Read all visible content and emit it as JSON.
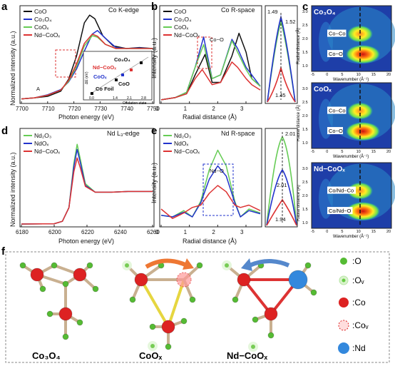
{
  "panel_labels": {
    "a": "a",
    "b": "b",
    "c": "c",
    "d": "d",
    "e": "e",
    "f": "f"
  },
  "legend": {
    "a": [
      "CoO",
      "Co₃O₄",
      "CoOₓ",
      "Nd−CoOₓ"
    ],
    "b": [
      "CoO",
      "Co₃O₄",
      "CoOₓ",
      "Nd−CoOₓ"
    ],
    "d": [
      "Nd₂O₃",
      "NdOₓ",
      "Nd−CoOₓ"
    ],
    "e": [
      "Nd₂O₃",
      "NdOₓ",
      "Nd−CoOₓ"
    ]
  },
  "colors": {
    "black": "#111111",
    "blue": "#2233cc",
    "green": "#66cc55",
    "red": "#dd3333",
    "orange": "#ee7733"
  },
  "panel_a": {
    "title": "Co K-edge",
    "xlabel": "Photon energy (eV)",
    "ylabel": "Normalized intensity (a.u.)",
    "xticks": [
      "7700",
      "7710",
      "7720",
      "7730",
      "7740",
      "7750"
    ],
    "peak_label": "A",
    "inset": {
      "ylabel": "ΔE (eV)",
      "xlabel": "Oxidation state",
      "labels": [
        "Co₃O₄",
        "Nd−CoOₓ",
        "CoOₓ",
        "CoO",
        "Co Foil"
      ],
      "xticks": [
        "0.0",
        "1.4",
        "2.1",
        "2.8"
      ],
      "yticks": [
        "0",
        "5",
        "10"
      ]
    }
  },
  "panel_b": {
    "title": "Co R-space",
    "xlabel": "Radial distance (Å)",
    "ylabel": "Intensity (a.u.)",
    "xticks": [
      "0",
      "1",
      "2",
      "3"
    ],
    "annotation": "Co−O",
    "zoom_values": [
      "1.49",
      "1.52",
      "1.45"
    ]
  },
  "panel_c": {
    "maps": [
      {
        "label": "Co₃O₄",
        "peaks": [
          "Co−Co",
          "Co−O"
        ]
      },
      {
        "label": "CoOₓ",
        "peaks": [
          "Co−Co",
          "Co−O"
        ]
      },
      {
        "label": "Nd−CoOₓ",
        "peaks": [
          "Co/Nd−Co",
          "Co/Nd−O"
        ]
      }
    ],
    "ylabel": "Radial distance (Å)",
    "xlabel": "Wavenumber (Å⁻¹)",
    "xticks": [
      "-5",
      "0",
      "5",
      "10",
      "15",
      "20"
    ],
    "yticks": [
      "1.0",
      "1.5",
      "2.0",
      "2.5",
      "3.0"
    ]
  },
  "panel_d": {
    "title": "Nd L₃-edge",
    "xlabel": "Photon energy (eV)",
    "ylabel": "Normalized intensity (a.u.)",
    "xticks": [
      "6180",
      "6200",
      "6220",
      "6240",
      "6260"
    ]
  },
  "panel_e": {
    "title": "Nd R-space",
    "xlabel": "Radial distance (Å)",
    "ylabel": "Intensity (a.u.)",
    "xticks": [
      "0",
      "1",
      "2",
      "3"
    ],
    "annotation": "Nd−O",
    "zoom_values": [
      "2.01",
      "2.01",
      "1.94"
    ]
  },
  "panel_f": {
    "structures": [
      "Co₃O₄",
      "CoOₓ",
      "Nd−CoOₓ"
    ],
    "legend": [
      ":O",
      ":Oᵥ",
      ":Co",
      ":Coᵥ",
      ":Nd"
    ]
  },
  "chart_data": [
    {
      "type": "line",
      "panel": "a",
      "title": "Co K-edge",
      "xlabel": "Photon energy (eV)",
      "ylabel": "Normalized intensity (a.u.)",
      "xlim": [
        7700,
        7750
      ],
      "series": [
        {
          "name": "CoO",
          "x": [
            7700,
            7705,
            7710,
            7715,
            7718,
            7721,
            7724,
            7726,
            7728,
            7731,
            7735,
            7740,
            7745,
            7750
          ],
          "y": [
            0.02,
            0.04,
            0.07,
            0.17,
            0.4,
            0.85,
            1.5,
            1.65,
            1.58,
            1.25,
            1.05,
            1.0,
            1.02,
            1.0
          ]
        },
        {
          "name": "Co₃O₄",
          "x": [
            7700,
            7705,
            7710,
            7715,
            7718,
            7721,
            7724,
            7727,
            7729,
            7732,
            7736,
            7740,
            7745,
            7750
          ],
          "y": [
            0.02,
            0.04,
            0.1,
            0.2,
            0.35,
            0.6,
            0.95,
            1.28,
            1.35,
            1.2,
            1.02,
            1.0,
            1.01,
            1.0
          ]
        },
        {
          "name": "CoOₓ",
          "x": [
            7700,
            7705,
            7710,
            7715,
            7718,
            7721,
            7724,
            7727,
            7729,
            7732,
            7736,
            7740,
            7745,
            7750
          ],
          "y": [
            0.02,
            0.04,
            0.09,
            0.19,
            0.36,
            0.65,
            1.05,
            1.25,
            1.22,
            1.08,
            1.0,
            1.0,
            1.0,
            1.0
          ]
        },
        {
          "name": "Nd−CoOₓ",
          "x": [
            7700,
            7705,
            7710,
            7715,
            7718,
            7721,
            7724,
            7727,
            7729,
            7732,
            7736,
            7740,
            7745,
            7750
          ],
          "y": [
            0.02,
            0.04,
            0.09,
            0.19,
            0.38,
            0.7,
            1.1,
            1.28,
            1.24,
            1.08,
            1.0,
            1.0,
            1.0,
            1.0
          ]
        }
      ]
    },
    {
      "type": "line",
      "panel": "b",
      "title": "Co R-space",
      "xlabel": "Radial distance (Å)",
      "ylabel": "Intensity (a.u.)",
      "xlim": [
        0,
        3.5
      ],
      "series": [
        {
          "name": "CoO",
          "x": [
            0,
            0.5,
            0.9,
            1.2,
            1.55,
            1.8,
            2.1,
            2.5,
            2.75,
            3.0,
            3.2,
            3.5
          ],
          "y": [
            0.02,
            0.05,
            0.1,
            0.35,
            0.62,
            0.25,
            0.25,
            0.6,
            0.9,
            0.65,
            0.3,
            0.2
          ]
        },
        {
          "name": "Co₃O₄",
          "x": [
            0,
            0.5,
            0.9,
            1.2,
            1.5,
            1.8,
            2.1,
            2.5,
            2.7,
            3.0,
            3.2,
            3.5
          ],
          "y": [
            0.02,
            0.05,
            0.12,
            0.45,
            0.85,
            0.3,
            0.35,
            0.82,
            0.7,
            0.45,
            0.35,
            0.2
          ]
        },
        {
          "name": "CoOₓ",
          "x": [
            0,
            0.5,
            0.9,
            1.2,
            1.5,
            1.8,
            2.1,
            2.5,
            2.7,
            3.0,
            3.2,
            3.5
          ],
          "y": [
            0.02,
            0.05,
            0.12,
            0.45,
            0.75,
            0.3,
            0.35,
            0.8,
            0.65,
            0.42,
            0.3,
            0.2
          ]
        },
        {
          "name": "Nd−CoOₓ",
          "x": [
            0,
            0.5,
            0.9,
            1.2,
            1.45,
            1.8,
            2.1,
            2.5,
            2.7,
            3.0,
            3.2,
            3.5
          ],
          "y": [
            0.02,
            0.05,
            0.1,
            0.3,
            0.42,
            0.22,
            0.25,
            0.52,
            0.45,
            0.3,
            0.22,
            0.15
          ]
        }
      ]
    },
    {
      "type": "line",
      "panel": "d",
      "title": "Nd L₃-edge",
      "xlabel": "Photon energy (eV)",
      "ylabel": "Normalized intensity (a.u.)",
      "xlim": [
        6180,
        6260
      ],
      "series": [
        {
          "name": "Nd₂O₃",
          "x": [
            6180,
            6200,
            6205,
            6209,
            6212,
            6214,
            6216,
            6219,
            6225,
            6235,
            6245,
            6260
          ],
          "y": [
            0.02,
            0.03,
            0.1,
            0.5,
            1.8,
            2.35,
            1.9,
            1.2,
            0.95,
            0.95,
            0.97,
            0.97
          ]
        },
        {
          "name": "NdOₓ",
          "x": [
            6180,
            6200,
            6205,
            6209,
            6212,
            6214,
            6216,
            6219,
            6225,
            6235,
            6245,
            6260
          ],
          "y": [
            0.02,
            0.03,
            0.1,
            0.5,
            1.7,
            2.2,
            1.8,
            1.15,
            0.95,
            0.95,
            0.97,
            0.97
          ]
        },
        {
          "name": "Nd−CoOₓ",
          "x": [
            6180,
            6200,
            6205,
            6209,
            6212,
            6214,
            6216,
            6219,
            6225,
            6235,
            6245,
            6260
          ],
          "y": [
            0.02,
            0.03,
            0.1,
            0.5,
            1.55,
            1.95,
            1.65,
            1.12,
            0.95,
            0.95,
            0.97,
            0.97
          ]
        }
      ]
    },
    {
      "type": "line",
      "panel": "e",
      "title": "Nd R-space",
      "xlabel": "Radial distance (Å)",
      "ylabel": "Intensity (a.u.)",
      "xlim": [
        0,
        3.5
      ],
      "series": [
        {
          "name": "Nd₂O₃",
          "x": [
            0,
            0.4,
            0.8,
            1.1,
            1.4,
            1.7,
            2.0,
            2.3,
            2.6,
            2.8,
            3.1,
            3.5
          ],
          "y": [
            0.12,
            0.1,
            0.18,
            0.1,
            0.3,
            0.7,
            0.95,
            0.75,
            0.3,
            0.1,
            0.2,
            0.15
          ]
        },
        {
          "name": "NdOₓ",
          "x": [
            0,
            0.4,
            0.8,
            1.1,
            1.4,
            1.7,
            2.0,
            2.3,
            2.6,
            2.8,
            3.1,
            3.5
          ],
          "y": [
            0.12,
            0.1,
            0.16,
            0.1,
            0.28,
            0.58,
            0.75,
            0.62,
            0.28,
            0.1,
            0.18,
            0.14
          ]
        },
        {
          "name": "Nd−CoOₓ",
          "x": [
            0,
            0.4,
            0.8,
            1.1,
            1.4,
            1.7,
            2.0,
            2.3,
            2.6,
            2.8,
            3.1,
            3.5
          ],
          "y": [
            0.2,
            0.08,
            0.15,
            0.22,
            0.25,
            0.4,
            0.5,
            0.42,
            0.25,
            0.22,
            0.25,
            0.18
          ]
        }
      ]
    }
  ]
}
